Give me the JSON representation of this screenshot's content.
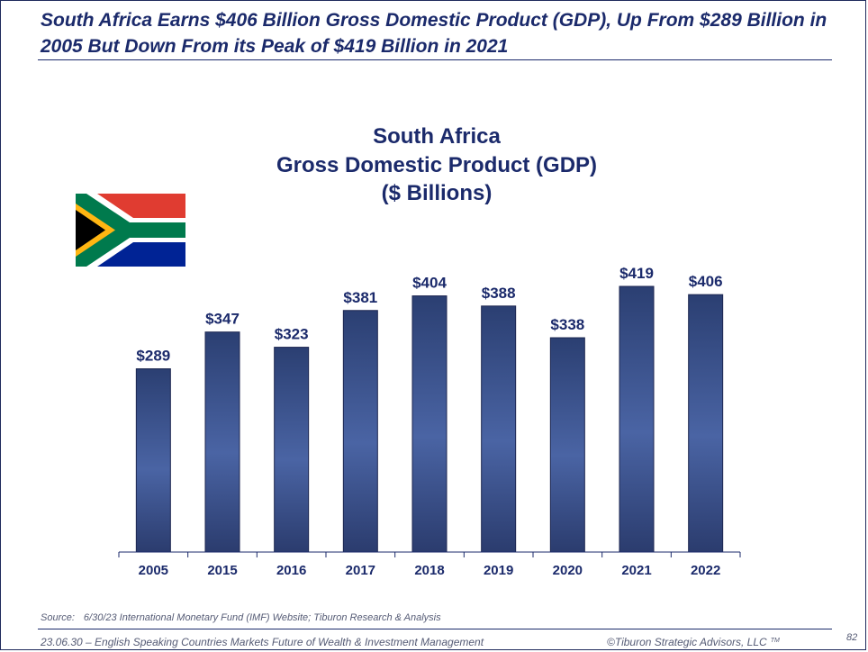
{
  "slide": {
    "headline": "South Africa Earns $406 Billion Gross Domestic Product (GDP), Up From $289 Billion in 2005 But Down From its Peak of $419 Billion in 2021",
    "flag": "south-africa-flag"
  },
  "chart_data": {
    "type": "bar",
    "title_lines": [
      "South Africa",
      "Gross Domestic Product (GDP)",
      "($ Billions)"
    ],
    "categories": [
      "2005",
      "2015",
      "2016",
      "2017",
      "2018",
      "2019",
      "2020",
      "2021",
      "2022"
    ],
    "values": [
      289,
      347,
      323,
      381,
      404,
      388,
      338,
      419,
      406
    ],
    "labels": [
      "$289",
      "$347",
      "$323",
      "$381",
      "$404",
      "$388",
      "$338",
      "$419",
      "$406"
    ],
    "xlabel": "",
    "ylabel": "",
    "ylim": [
      0,
      419
    ],
    "grid": false,
    "legend": "none",
    "bar_color_top": "#2b3f72",
    "bar_color_mid": "#4a64a4",
    "bar_color_bottom": "#2b3c6e"
  },
  "footer": {
    "source_label": "Source:",
    "source_text": "6/30/23 International Monetary Fund (IMF) Website; Tiburon Research & Analysis",
    "left": "23.06.30 – English Speaking Countries Markets Future of Wealth & Investment Management",
    "right": "©Tiburon Strategic Advisors, LLC",
    "trademark": "TM",
    "page_number": "82"
  }
}
